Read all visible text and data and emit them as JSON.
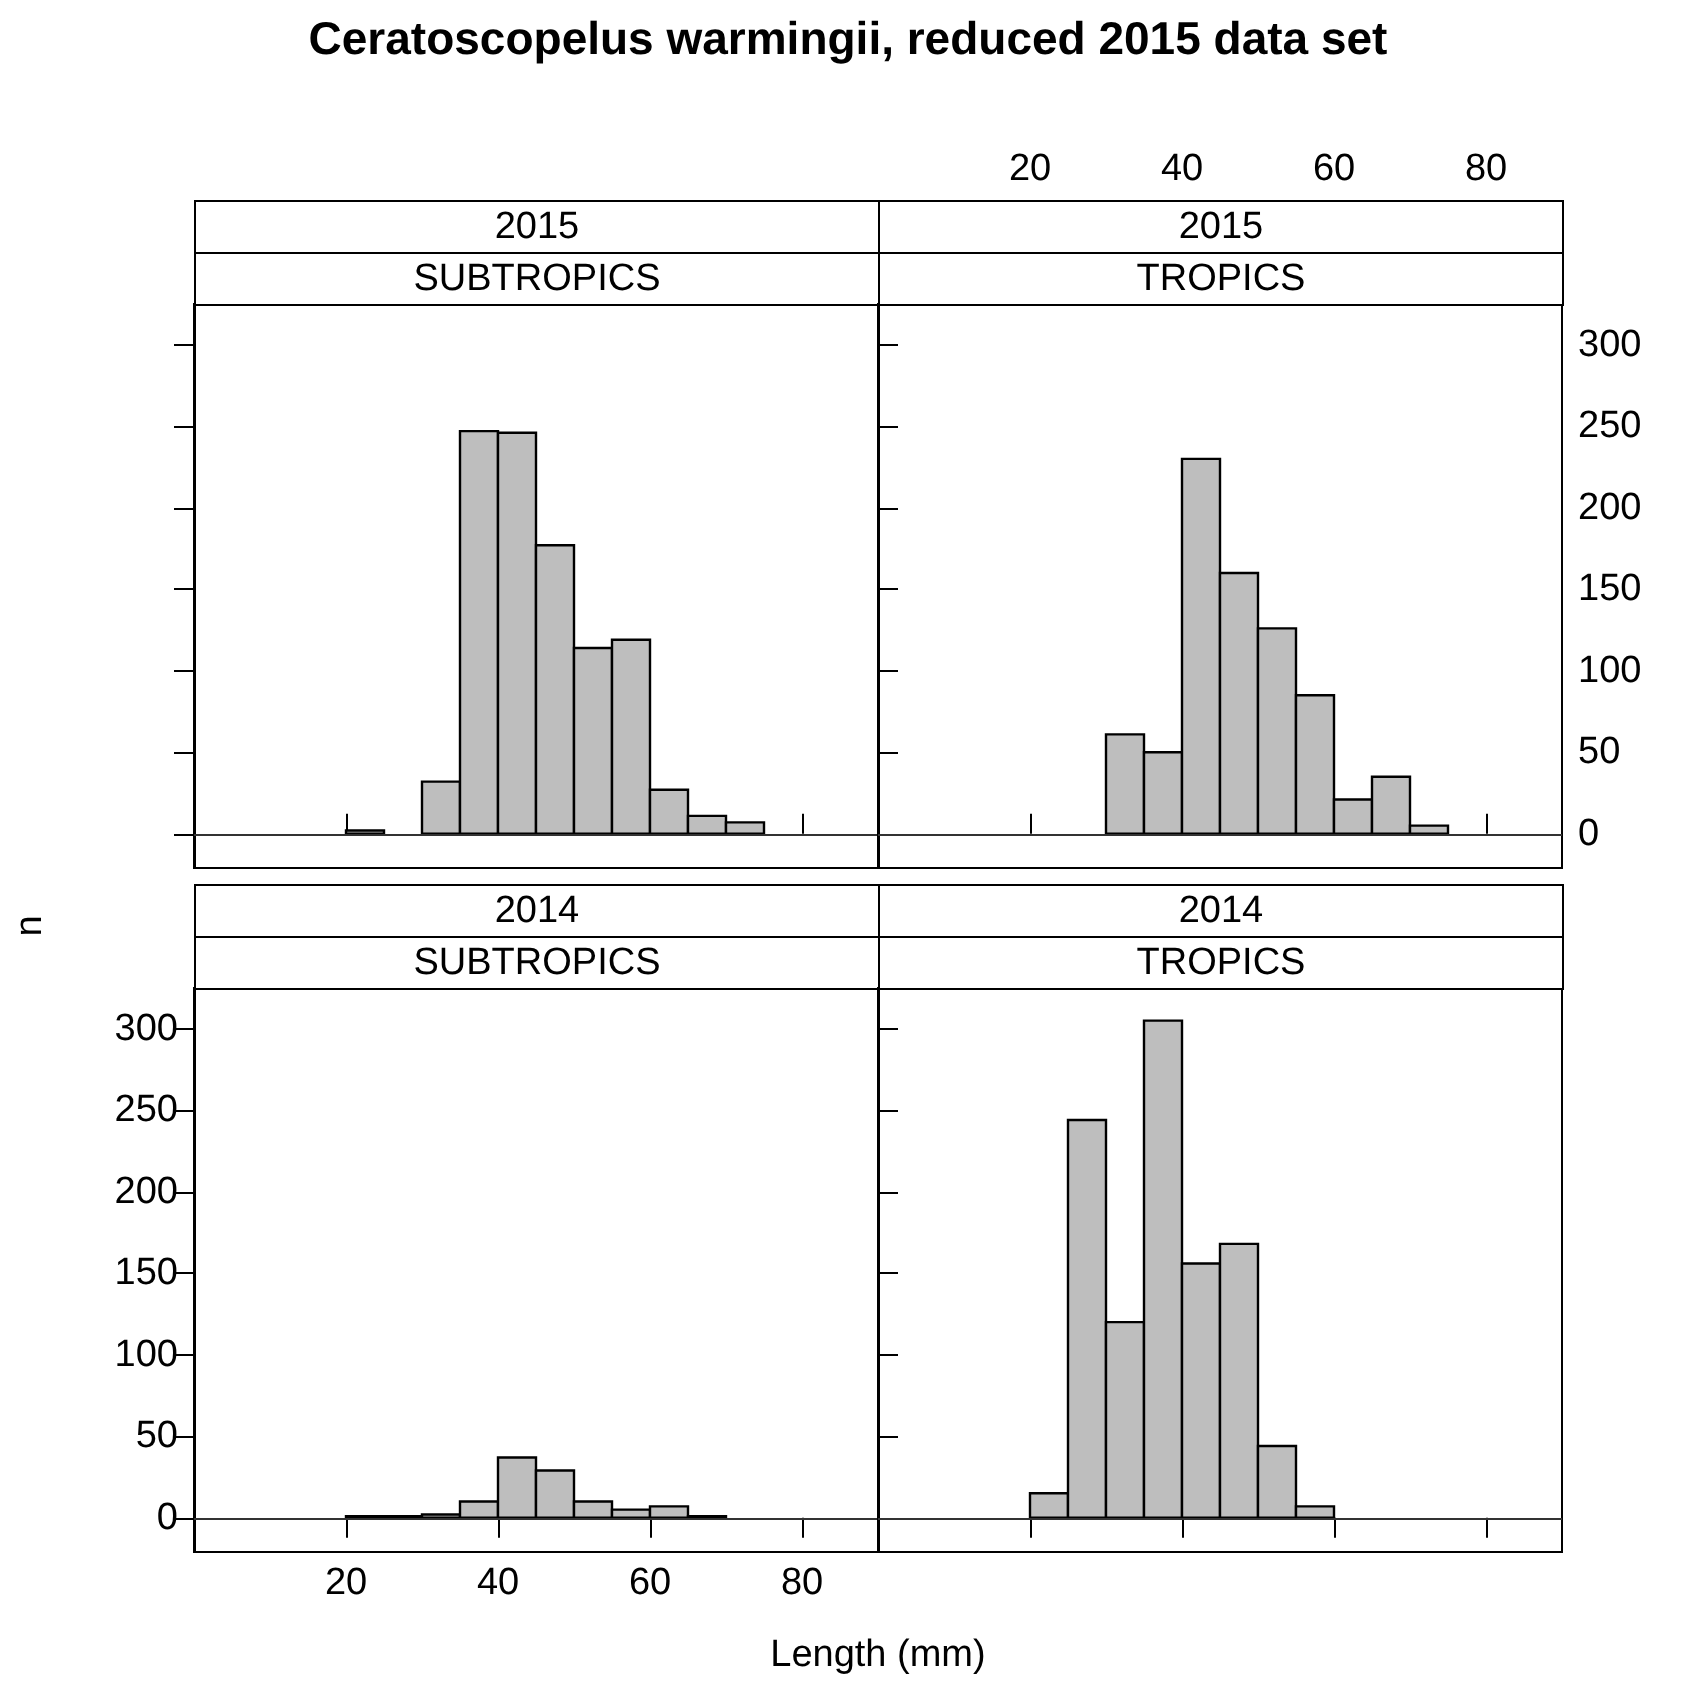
{
  "chart_data": [
    {
      "type": "histogram",
      "title": "2015",
      "subtitle": "SUBTROPICS",
      "annotations": [
        "Ceratoscopelus warmingii, reduced 2015 data set"
      ],
      "ylabel": "n",
      "bins": [
        20,
        25,
        30,
        35,
        40,
        45,
        50,
        55,
        60,
        65,
        70,
        75
      ],
      "values": [
        2,
        0,
        32,
        247,
        246,
        177,
        114,
        119,
        27,
        11,
        7
      ],
      "color": "#bebebe",
      "xlim": [
        0,
        90
      ],
      "xticks": [
        20,
        40,
        60,
        80
      ],
      "ylim": [
        -21,
        325
      ],
      "yticks": [
        0,
        50,
        100,
        150,
        200,
        250,
        300
      ],
      "ref_lines": [
        {
          "axis": "y",
          "value": 0,
          "color": "#333333"
        }
      ],
      "tick_labels": false
    },
    {
      "type": "histogram",
      "title": "2015",
      "subtitle": "TROPICS",
      "bins": [
        30,
        35,
        40,
        45,
        50,
        55,
        60,
        65,
        70,
        75
      ],
      "values": [
        61,
        50,
        230,
        160,
        126,
        85,
        21,
        35,
        5
      ],
      "color": "#bebebe",
      "xlim": [
        0,
        90
      ],
      "xticks": [
        20,
        40,
        60,
        80
      ],
      "ylim": [
        -21,
        325
      ],
      "yticks": [
        0,
        50,
        100,
        150,
        200,
        250,
        300
      ],
      "ref_lines": [
        {
          "axis": "y",
          "value": 0,
          "color": "#333333"
        }
      ]
    },
    {
      "type": "histogram",
      "title": "2014",
      "subtitle": "SUBTROPICS",
      "xlabel": "Length (mm)",
      "bins": [
        20,
        25,
        30,
        35,
        40,
        45,
        50,
        55,
        60,
        65,
        70
      ],
      "values": [
        1,
        1,
        2,
        10,
        37,
        29,
        10,
        5,
        7,
        1
      ],
      "color": "#bebebe",
      "xlim": [
        0,
        90
      ],
      "xticks": [
        20,
        40,
        60,
        80
      ],
      "ylim": [
        -21,
        325
      ],
      "yticks": [
        0,
        50,
        100,
        150,
        200,
        250,
        300
      ],
      "ref_lines": [
        {
          "axis": "y",
          "value": 0,
          "color": "#333333"
        }
      ]
    },
    {
      "type": "histogram",
      "title": "2014",
      "subtitle": "TROPICS",
      "bins": [
        20,
        25,
        30,
        35,
        40,
        45,
        50,
        55,
        60
      ],
      "values": [
        15,
        244,
        120,
        305,
        156,
        168,
        44,
        7
      ],
      "color": "#bebebe",
      "xlim": [
        0,
        90
      ],
      "xticks": [
        20,
        40,
        60,
        80
      ],
      "ylim": [
        -21,
        325
      ],
      "yticks": [
        0,
        50,
        100,
        150,
        200,
        250,
        300
      ],
      "ref_lines": [
        {
          "axis": "y",
          "value": 0,
          "color": "#333333"
        }
      ],
      "tick_labels": false
    }
  ]
}
